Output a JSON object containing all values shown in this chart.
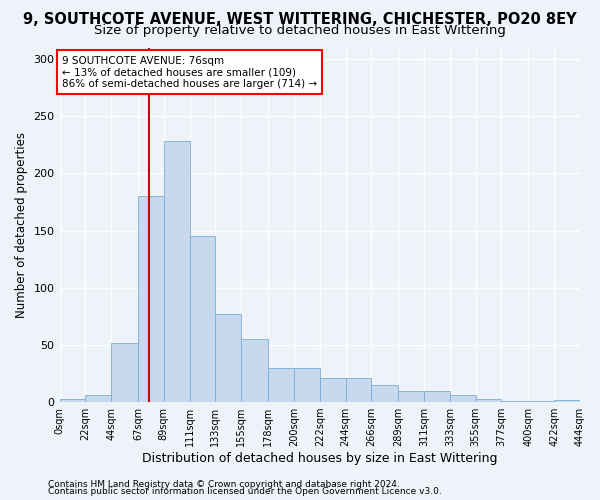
{
  "title": "9, SOUTHCOTE AVENUE, WEST WITTERING, CHICHESTER, PO20 8EY",
  "subtitle": "Size of property relative to detached houses in East Wittering",
  "xlabel": "Distribution of detached houses by size in East Wittering",
  "ylabel": "Number of detached properties",
  "footer_line1": "Contains HM Land Registry data © Crown copyright and database right 2024.",
  "footer_line2": "Contains public sector information licensed under the Open Government Licence v3.0.",
  "annotation_line1": "9 SOUTHCOTE AVENUE: 76sqm",
  "annotation_line2": "← 13% of detached houses are smaller (109)",
  "annotation_line3": "86% of semi-detached houses are larger (714) →",
  "bar_color": "#c8d9ee",
  "bar_edge_color": "#7aafd4",
  "vline_x": 76,
  "vline_color": "#cc0000",
  "bin_edges": [
    0,
    22,
    44,
    67,
    89,
    111,
    133,
    155,
    178,
    200,
    222,
    244,
    266,
    289,
    311,
    333,
    355,
    377,
    400,
    422,
    444
  ],
  "bar_heights": [
    3,
    6,
    52,
    180,
    228,
    145,
    77,
    55,
    30,
    30,
    21,
    21,
    15,
    10,
    10,
    6,
    3,
    1,
    1,
    2
  ],
  "ylim": [
    0,
    310
  ],
  "yticks": [
    0,
    50,
    100,
    150,
    200,
    250,
    300
  ],
  "background_color": "#eef3fa",
  "grid_color": "#ffffff",
  "title_fontsize": 10.5,
  "subtitle_fontsize": 9.5,
  "axis_label_fontsize": 8.5,
  "tick_fontsize": 7,
  "footer_fontsize": 6.5
}
